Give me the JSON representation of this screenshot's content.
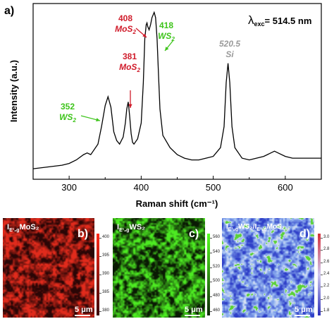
{
  "chart_data": {
    "type": "line",
    "panel_label": "a)",
    "xlabel": "Raman shift (cm⁻¹)",
    "ylabel": "Intensity (a.u.)",
    "xlim": [
      250,
      650
    ],
    "ylim": [
      0,
      1
    ],
    "xticks": [
      300,
      400,
      500,
      600
    ],
    "grid": false,
    "excitation": {
      "symbol": "λ",
      "subscript": "exc",
      "value": "= 514.5 nm"
    },
    "series": [
      {
        "x": [
          250,
          270,
          290,
          300,
          310,
          320,
          325,
          330,
          340,
          345,
          350,
          354,
          358,
          362,
          366,
          370,
          375,
          378,
          380,
          382,
          384,
          386,
          388,
          390,
          395,
          400,
          403,
          405,
          407,
          408,
          409,
          411,
          413,
          415,
          418,
          420,
          422,
          424,
          426,
          430,
          440,
          450,
          460,
          470,
          480,
          490,
          500,
          510,
          515,
          518,
          520.5,
          523,
          526,
          530,
          540,
          550,
          560,
          570,
          580,
          585,
          590,
          600,
          610,
          620,
          630,
          640,
          650
        ],
        "y": [
          0.06,
          0.07,
          0.08,
          0.09,
          0.11,
          0.14,
          0.15,
          0.14,
          0.2,
          0.3,
          0.42,
          0.47,
          0.41,
          0.27,
          0.22,
          0.2,
          0.24,
          0.32,
          0.4,
          0.44,
          0.36,
          0.26,
          0.21,
          0.2,
          0.23,
          0.32,
          0.55,
          0.8,
          0.88,
          0.89,
          0.87,
          0.85,
          0.88,
          0.92,
          0.95,
          0.92,
          0.8,
          0.6,
          0.4,
          0.25,
          0.18,
          0.14,
          0.12,
          0.11,
          0.11,
          0.12,
          0.13,
          0.18,
          0.3,
          0.55,
          0.66,
          0.55,
          0.3,
          0.18,
          0.12,
          0.11,
          0.12,
          0.13,
          0.15,
          0.16,
          0.15,
          0.13,
          0.12,
          0.12,
          0.12,
          0.12,
          0.12
        ]
      }
    ],
    "annotations": [
      {
        "number": "352",
        "species": "WS",
        "sub": "2",
        "color": "#3ec41b",
        "x": 352,
        "arrow": "right"
      },
      {
        "number": "381",
        "species": "MoS",
        "sub": "2",
        "color": "#d01c2b",
        "x": 381,
        "arrow": "down"
      },
      {
        "number": "408",
        "species": "MoS",
        "sub": "2",
        "color": "#d01c2b",
        "x": 408,
        "arrow": "down-right"
      },
      {
        "number": "418",
        "species": "WS",
        "sub": "2",
        "color": "#3ec41b",
        "x": 418,
        "arrow": "down-left"
      },
      {
        "number": "520.5",
        "species": "Si",
        "sub": "",
        "color": "#9a9a9a",
        "x": 520.5,
        "arrow": "none"
      }
    ]
  },
  "maps": [
    {
      "title_main": "I",
      "title_sub": "E¹₂g",
      "title_rest": "MoS₂",
      "letter": "b)",
      "scale_label": "5 μm",
      "palette": [
        "#2a0606",
        "#e12b1c"
      ],
      "colorbar_colors": [
        "#3a0505",
        "#ff2a1a"
      ],
      "colorbar_ticks": [
        "400",
        "395",
        "390",
        "385",
        "380"
      ]
    },
    {
      "title_main": "I",
      "title_sub": "E¹₂g",
      "title_rest": "WS₂",
      "letter": "c)",
      "scale_label": "5 μm",
      "palette": [
        "#0a1a04",
        "#4dea22"
      ],
      "colorbar_colors": [
        "#0e2a06",
        "#55ff22"
      ],
      "colorbar_ticks": [
        "560",
        "540",
        "520",
        "500",
        "480",
        "460"
      ]
    },
    {
      "title_main": "I",
      "title_sub": "E¹₂g",
      "title_rest": "WS₂/I",
      "title_rest2": "MoS₂",
      "letter": "d)",
      "scale_label": "5 μm",
      "palette": [
        "#2f3fc8",
        "#8fb1f0",
        "#e8eaf4",
        "#5ad13a"
      ],
      "colorbar_colors": [
        "#2d2fb8",
        "#d0c8ee",
        "#d4313c"
      ],
      "colorbar_ticks": [
        "3.0",
        "2.8",
        "2.6",
        "2.4",
        "2.2",
        "2.0",
        "1.8"
      ]
    }
  ]
}
